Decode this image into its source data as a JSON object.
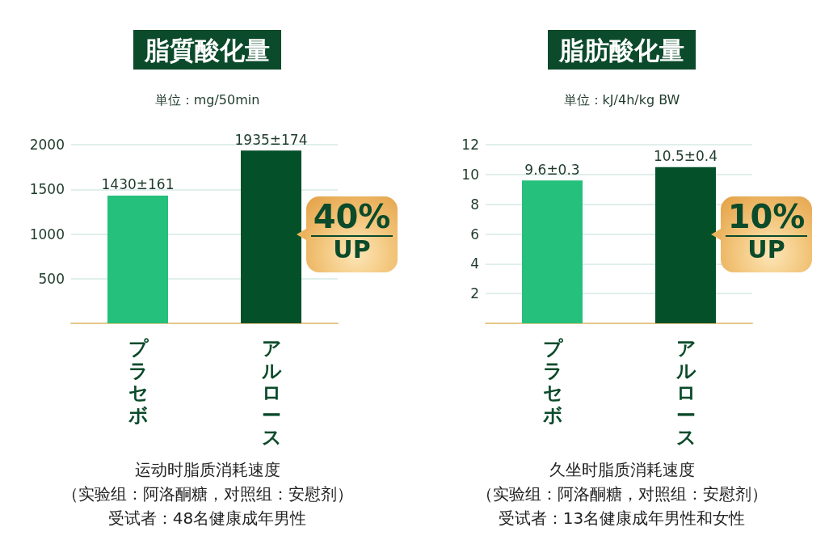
{
  "chart_data": [
    {
      "type": "bar",
      "title": "脂質酸化量",
      "subtitle": "単位：mg/50min",
      "categories": [
        "プラセボ",
        "アルロース"
      ],
      "values": [
        1430,
        1935
      ],
      "value_labels": [
        "1430±161",
        "1935±174"
      ],
      "colors": [
        "#24c07c",
        "#045028"
      ],
      "ylim": [
        0,
        2000
      ],
      "yticks": [
        500,
        1000,
        1500,
        2000
      ],
      "grid": "y",
      "annotations": [
        "40% UP",
        "运动时脂质消耗速度",
        "（实验组：阿洛酮糖，对照组：安慰剂）",
        "受试者：48名健康成年男性"
      ]
    },
    {
      "type": "bar",
      "title": "脂肪酸化量",
      "subtitle": "単位：kJ/4h/kg BW",
      "categories": [
        "プラセボ",
        "アルロース"
      ],
      "values": [
        9.6,
        10.5
      ],
      "value_labels": [
        "9.6±0.3",
        "10.5±0.4"
      ],
      "colors": [
        "#24c07c",
        "#045028"
      ],
      "ylim": [
        0,
        12
      ],
      "yticks": [
        2,
        4,
        6,
        8,
        10,
        12
      ],
      "grid": "y",
      "annotations": [
        "10% UP",
        "久坐时脂质消耗速度",
        "（实验组：阿洛酮糖，对照组：安慰剂）",
        "受试者：13名健康成年男性和女性"
      ]
    }
  ]
}
